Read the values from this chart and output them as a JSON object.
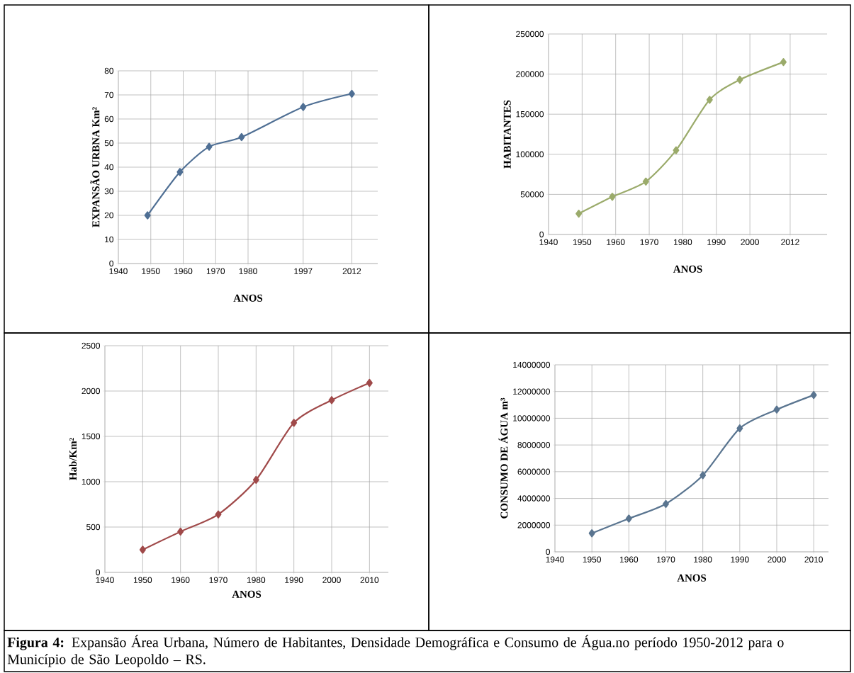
{
  "chart_data": [
    {
      "type": "line",
      "xlabel": "ANOS",
      "ylabel": "EXPANSÃO URBNA Km²",
      "x": [
        1949,
        1959,
        1968,
        1978,
        1997,
        2012
      ],
      "series": [
        {
          "color": "#4f6f94",
          "values": [
            20,
            38,
            48.5,
            52.5,
            65,
            70.5
          ]
        }
      ],
      "xlim": [
        1940,
        2020
      ],
      "ylim": [
        0,
        80
      ],
      "xticks": [
        1940,
        1950,
        1960,
        1970,
        1980,
        1997,
        2012
      ],
      "yticks": [
        0,
        10,
        20,
        30,
        40,
        50,
        60,
        70,
        80
      ],
      "grid": true,
      "marker": "diamond"
    },
    {
      "type": "line",
      "xlabel": "ANOS",
      "ylabel": "HABITANTES",
      "x": [
        1949,
        1959,
        1969,
        1978,
        1988,
        1997,
        2010
      ],
      "series": [
        {
          "color": "#9bab6b",
          "values": [
            26000,
            47000,
            66000,
            105000,
            168000,
            193000,
            215000
          ]
        }
      ],
      "xlim": [
        1940,
        2023
      ],
      "ylim": [
        0,
        250000
      ],
      "xticks": [
        1940,
        1950,
        1960,
        1970,
        1980,
        1990,
        2000,
        2012
      ],
      "yticks": [
        0,
        50000,
        100000,
        150000,
        200000,
        250000
      ],
      "grid": true,
      "marker": "diamond"
    },
    {
      "type": "line",
      "xlabel": "ANOS",
      "ylabel": "Hab/Km²",
      "x": [
        1950,
        1960,
        1970,
        1980,
        1990,
        2000,
        2010
      ],
      "series": [
        {
          "color": "#a04a4a",
          "values": [
            250,
            450,
            640,
            1020,
            1650,
            1900,
            2090
          ]
        }
      ],
      "xlim": [
        1940,
        2015
      ],
      "ylim": [
        0,
        2500
      ],
      "xticks": [
        1940,
        1950,
        1960,
        1970,
        1980,
        1990,
        2000,
        2010
      ],
      "yticks": [
        0,
        500,
        1000,
        1500,
        2000,
        2500
      ],
      "grid": true,
      "marker": "diamond"
    },
    {
      "type": "line",
      "xlabel": "ANOS",
      "ylabel": "CONSUMO DE ÁGUA m³",
      "x": [
        1950,
        1960,
        1970,
        1980,
        1990,
        2000,
        2010
      ],
      "series": [
        {
          "color": "#5a7590",
          "values": [
            1390000,
            2490000,
            3590000,
            5730000,
            9250000,
            10650000,
            11740000
          ]
        }
      ],
      "xlim": [
        1940,
        2014
      ],
      "ylim": [
        0,
        14000000
      ],
      "xticks": [
        1940,
        1950,
        1960,
        1970,
        1980,
        1990,
        2000,
        2010
      ],
      "yticks": [
        0,
        2000000,
        4000000,
        6000000,
        8000000,
        10000000,
        12000000,
        14000000
      ],
      "grid": true,
      "marker": "diamond",
      "annotations": [
        "**Figura 4:** Expansão Área Urbana, Número de Habitantes, Densidade Demográfica e Consumo de Água.no período 1950-2012 para o Município de São Leopoldo – RS."
      ]
    }
  ]
}
